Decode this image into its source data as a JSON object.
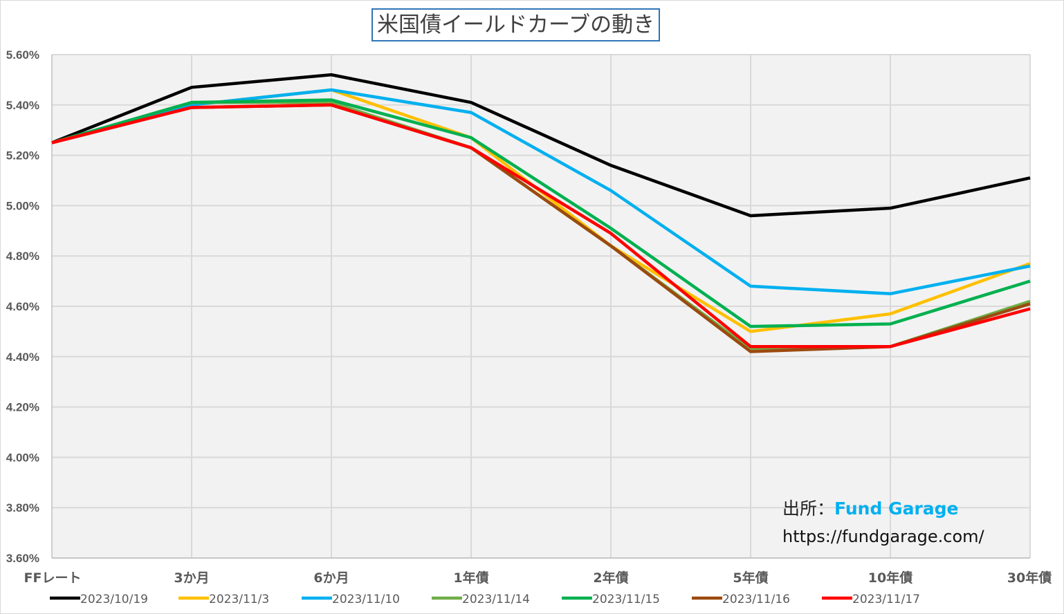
{
  "chart_data": {
    "type": "line",
    "title": "米国債イールドカーブの動き",
    "categories": [
      "FFレート",
      "3か月",
      "6か月",
      "1年債",
      "2年債",
      "5年債",
      "10年債",
      "30年債"
    ],
    "ylim": [
      3.6,
      5.6
    ],
    "yticks": [
      "3.60%",
      "3.80%",
      "4.00%",
      "4.20%",
      "4.40%",
      "4.60%",
      "4.80%",
      "5.00%",
      "5.20%",
      "5.40%",
      "5.60%"
    ],
    "grid": true,
    "legend_position": "bottom",
    "series": [
      {
        "name": "2023/10/19",
        "color": "#000000",
        "values": [
          5.25,
          5.47,
          5.52,
          5.41,
          5.16,
          4.96,
          4.99,
          5.11
        ]
      },
      {
        "name": "2023/11/3",
        "color": "#ffc000",
        "values": [
          5.25,
          5.4,
          5.46,
          5.27,
          4.84,
          4.5,
          4.57,
          4.77
        ]
      },
      {
        "name": "2023/11/10",
        "color": "#00b0f0",
        "values": [
          5.25,
          5.4,
          5.46,
          5.37,
          5.06,
          4.68,
          4.65,
          4.76
        ]
      },
      {
        "name": "2023/11/14",
        "color": "#70ad47",
        "values": [
          5.25,
          5.41,
          5.41,
          5.23,
          4.84,
          4.43,
          4.44,
          4.62
        ]
      },
      {
        "name": "2023/11/15",
        "color": "#00b050",
        "values": [
          5.25,
          5.41,
          5.42,
          5.27,
          4.91,
          4.52,
          4.53,
          4.7
        ]
      },
      {
        "name": "2023/11/16",
        "color": "#9c4a0f",
        "values": [
          5.25,
          5.39,
          5.4,
          5.23,
          4.84,
          4.42,
          4.44,
          4.61
        ]
      },
      {
        "name": "2023/11/17",
        "color": "#ff0000",
        "values": [
          5.25,
          5.39,
          5.4,
          5.23,
          4.89,
          4.44,
          4.44,
          4.59
        ]
      }
    ]
  },
  "source": {
    "label": "出所：",
    "brand": "Fund Garage",
    "url": "https://fundgarage.com/"
  }
}
